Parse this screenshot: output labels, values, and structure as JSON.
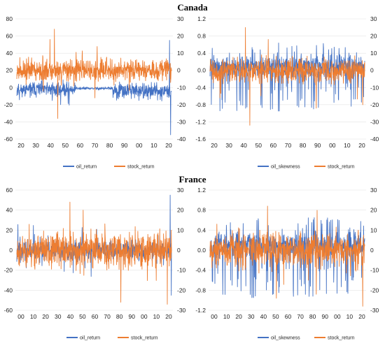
{
  "titles": [
    "Canada",
    "France"
  ],
  "colors": {
    "oil": "#4472C4",
    "stock": "#ED7D31"
  },
  "chart_data": [
    {
      "type": "line",
      "title": "Canada",
      "xticks": [
        "20",
        "30",
        "40",
        "50",
        "60",
        "70",
        "80",
        "90",
        "00",
        "10",
        "20"
      ],
      "left_ylim": [
        -60,
        80
      ],
      "left_yticks": [
        "80",
        "60",
        "40",
        "20",
        "0",
        "-20",
        "-40",
        "-60"
      ],
      "right_ylim": [
        -40,
        30
      ],
      "right_yticks": [
        "30",
        "20",
        "10",
        "0",
        "-10",
        "-20",
        "-30",
        "-40"
      ],
      "series": [
        {
          "name": "oil_return",
          "axis": "left",
          "color": "#4472C4"
        },
        {
          "name": "stock_return",
          "axis": "right",
          "color": "#ED7D31"
        }
      ],
      "grid": true,
      "legend": "bottom"
    },
    {
      "type": "line",
      "title": "Canada",
      "xticks": [
        "20",
        "30",
        "40",
        "50",
        "60",
        "70",
        "80",
        "90",
        "00",
        "10",
        "20"
      ],
      "left_ylim": [
        -1.6,
        1.2
      ],
      "left_yticks": [
        "1.2",
        "0.8",
        "0.4",
        "0.0",
        "-0.4",
        "-0.8",
        "-1.2",
        "-1.6"
      ],
      "right_ylim": [
        -40,
        30
      ],
      "right_yticks": [
        "30",
        "20",
        "10",
        "0",
        "-10",
        "-20",
        "-30",
        "-40"
      ],
      "series": [
        {
          "name": "oil_skewness",
          "axis": "left",
          "color": "#4472C4"
        },
        {
          "name": "stock_return",
          "axis": "right",
          "color": "#ED7D31"
        }
      ],
      "grid": true,
      "legend": "bottom"
    },
    {
      "type": "line",
      "title": "France",
      "xticks": [
        "00",
        "10",
        "20",
        "30",
        "40",
        "50",
        "60",
        "70",
        "80",
        "90",
        "00",
        "10",
        "20"
      ],
      "left_ylim": [
        -60,
        60
      ],
      "left_yticks": [
        "60",
        "40",
        "20",
        "0",
        "-20",
        "-40",
        "-60"
      ],
      "right_ylim": [
        -30,
        30
      ],
      "right_yticks": [
        "30",
        "20",
        "10",
        "0",
        "-10",
        "-20",
        "-30"
      ],
      "series": [
        {
          "name": "oil_return",
          "axis": "left",
          "color": "#4472C4"
        },
        {
          "name": "stock_return",
          "axis": "right",
          "color": "#ED7D31"
        }
      ],
      "grid": true,
      "legend": "bottom"
    },
    {
      "type": "line",
      "title": "France",
      "xticks": [
        "00",
        "10",
        "20",
        "30",
        "40",
        "50",
        "60",
        "70",
        "80",
        "90",
        "00",
        "10",
        "20"
      ],
      "left_ylim": [
        -1.2,
        1.2
      ],
      "left_yticks": [
        "1.2",
        "0.8",
        "0.4",
        "0.0",
        "-0.4",
        "-0.8",
        "-1.2"
      ],
      "right_ylim": [
        -30,
        30
      ],
      "right_yticks": [
        "30",
        "20",
        "10",
        "0",
        "-10",
        "-20",
        "-30"
      ],
      "series": [
        {
          "name": "oil_skewness",
          "axis": "left",
          "color": "#4472C4"
        },
        {
          "name": "stock_return",
          "axis": "right",
          "color": "#ED7D31"
        }
      ],
      "grid": true,
      "legend": "bottom"
    }
  ]
}
